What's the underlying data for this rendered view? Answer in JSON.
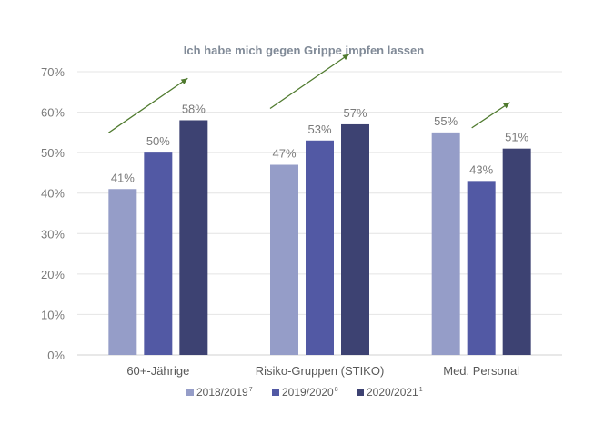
{
  "colors": {
    "series": [
      "#959dc8",
      "#5259a4",
      "#3d4272"
    ],
    "arrow": "#4f7a2e"
  },
  "chart_data": {
    "type": "bar",
    "title": "Ich habe mich gegen Grippe impfen lassen",
    "xlabel": "",
    "ylabel": "",
    "ylim": [
      0,
      70
    ],
    "yticks": [
      "0%",
      "10%",
      "20%",
      "30%",
      "40%",
      "50%",
      "60%",
      "70%"
    ],
    "grid": true,
    "legend_position": "bottom",
    "categories": [
      "60+-Jährige",
      "Risiko-Gruppen (STIKO)",
      "Med. Personal"
    ],
    "series": [
      {
        "name": "2018/2019",
        "sup": "7",
        "values": [
          41,
          47,
          55
        ],
        "labels": [
          "41%",
          "47%",
          "55%"
        ]
      },
      {
        "name": "2019/2020",
        "sup": "8",
        "values": [
          50,
          53,
          43
        ],
        "labels": [
          "50%",
          "53%",
          "43%"
        ]
      },
      {
        "name": "2020/2021",
        "sup": "1",
        "values": [
          58,
          57,
          51
        ],
        "labels": [
          "58%",
          "57%",
          "51%"
        ]
      }
    ],
    "annotations": [
      "upward-trend-arrow",
      "upward-trend-arrow",
      "upward-trend-arrow"
    ]
  }
}
